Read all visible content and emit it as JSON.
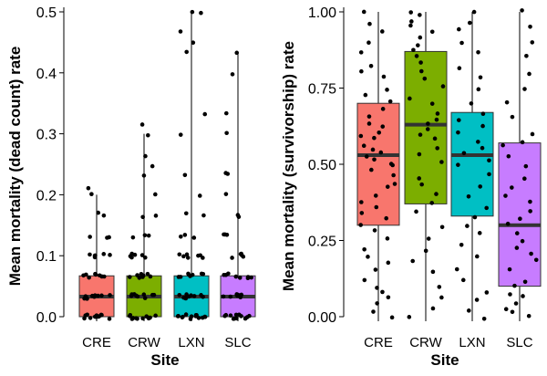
{
  "chart_data": [
    {
      "type": "boxplot",
      "xlabel": "Site",
      "ylabel": "Mean mortality (dead count) rate",
      "categories": [
        "CRE",
        "CRW",
        "LXN",
        "SLC"
      ],
      "colors": [
        "#f8766d",
        "#7cae00",
        "#00bfc4",
        "#c77cff"
      ],
      "ylim": [
        0,
        0.5
      ],
      "yticks": [
        0.0,
        0.1,
        0.2,
        0.3,
        0.4,
        0.5
      ],
      "ytick_labels": [
        "0.0",
        "0.1",
        "0.2",
        "0.3",
        "0.4",
        "0.5"
      ],
      "boxes": [
        {
          "q1": 0.0,
          "median": 0.033,
          "q3": 0.067,
          "whisker_low": 0.0,
          "whisker_high": 0.2
        },
        {
          "q1": 0.0,
          "median": 0.033,
          "q3": 0.067,
          "whisker_low": 0.0,
          "whisker_high": 0.3
        },
        {
          "q1": 0.0,
          "median": 0.033,
          "q3": 0.067,
          "whisker_low": 0.0,
          "whisker_high": 0.5
        },
        {
          "q1": 0.0,
          "median": 0.033,
          "q3": 0.067,
          "whisker_low": 0.0,
          "whisker_high": 0.433
        }
      ],
      "points": [
        [
          0,
          0,
          0,
          0,
          0,
          0,
          0,
          0,
          0,
          0,
          0,
          0,
          0.033,
          0.033,
          0.033,
          0.033,
          0.033,
          0.033,
          0.033,
          0.033,
          0.033,
          0.033,
          0.067,
          0.067,
          0.067,
          0.067,
          0.067,
          0.067,
          0.067,
          0.067,
          0.1,
          0.1,
          0.1,
          0.1,
          0.1,
          0.1,
          0.133,
          0.133,
          0.133,
          0.167,
          0.167,
          0.2,
          0.21
        ],
        [
          0,
          0,
          0,
          0,
          0,
          0,
          0,
          0,
          0,
          0,
          0,
          0,
          0,
          0.033,
          0.033,
          0.033,
          0.033,
          0.033,
          0.033,
          0.033,
          0.033,
          0.033,
          0.033,
          0.067,
          0.067,
          0.067,
          0.067,
          0.067,
          0.067,
          0.067,
          0.067,
          0.1,
          0.1,
          0.1,
          0.1,
          0.1,
          0.1,
          0.133,
          0.133,
          0.133,
          0.167,
          0.167,
          0.2,
          0.233,
          0.25,
          0.267,
          0.3,
          0.312
        ],
        [
          0,
          0,
          0,
          0,
          0,
          0,
          0,
          0,
          0,
          0,
          0,
          0,
          0,
          0,
          0.033,
          0.033,
          0.033,
          0.033,
          0.033,
          0.033,
          0.033,
          0.033,
          0.033,
          0.033,
          0.067,
          0.067,
          0.067,
          0.067,
          0.067,
          0.067,
          0.067,
          0.067,
          0.1,
          0.1,
          0.1,
          0.1,
          0.1,
          0.1,
          0.1,
          0.133,
          0.133,
          0.133,
          0.167,
          0.167,
          0.2,
          0.233,
          0.3,
          0.333,
          0.433,
          0.45,
          0.467,
          0.5,
          0.5
        ],
        [
          0,
          0,
          0,
          0,
          0,
          0,
          0,
          0,
          0,
          0,
          0,
          0,
          0.033,
          0.033,
          0.033,
          0.033,
          0.033,
          0.033,
          0.033,
          0.033,
          0.033,
          0.067,
          0.067,
          0.067,
          0.067,
          0.067,
          0.067,
          0.067,
          0.067,
          0.1,
          0.1,
          0.1,
          0.1,
          0.1,
          0.133,
          0.133,
          0.133,
          0.167,
          0.167,
          0.2,
          0.233,
          0.233,
          0.3,
          0.333,
          0.4,
          0.433
        ]
      ]
    },
    {
      "type": "boxplot",
      "xlabel": "Site",
      "ylabel": "Mean mortality (survivorship) rate",
      "categories": [
        "CRE",
        "CRW",
        "LXN",
        "SLC"
      ],
      "colors": [
        "#f8766d",
        "#7cae00",
        "#00bfc4",
        "#c77cff"
      ],
      "ylim": [
        0,
        1
      ],
      "yticks": [
        0.0,
        0.25,
        0.5,
        0.75,
        1.0
      ],
      "ytick_labels": [
        "0.00",
        "0.25",
        "0.50",
        "0.75",
        "1.00"
      ],
      "boxes": [
        {
          "q1": 0.3,
          "median": 0.53,
          "q3": 0.7,
          "whisker_low": 0.0,
          "whisker_high": 1.0
        },
        {
          "q1": 0.37,
          "median": 0.63,
          "q3": 0.87,
          "whisker_low": 0.0,
          "whisker_high": 1.0
        },
        {
          "q1": 0.33,
          "median": 0.53,
          "q3": 0.67,
          "whisker_low": 0.0,
          "whisker_high": 1.0
        },
        {
          "q1": 0.1,
          "median": 0.3,
          "q3": 0.57,
          "whisker_low": 0.0,
          "whisker_high": 1.0
        }
      ],
      "points": [
        [
          0.0,
          0.02,
          0.04,
          0.06,
          0.08,
          0.1,
          0.12,
          0.15,
          0.18,
          0.2,
          0.22,
          0.25,
          0.28,
          0.3,
          0.32,
          0.34,
          0.36,
          0.38,
          0.4,
          0.42,
          0.44,
          0.46,
          0.48,
          0.5,
          0.5,
          0.52,
          0.53,
          0.54,
          0.55,
          0.56,
          0.58,
          0.6,
          0.6,
          0.62,
          0.64,
          0.66,
          0.68,
          0.7,
          0.72,
          0.75,
          0.78,
          0.8,
          0.83,
          0.86,
          0.9,
          0.93,
          0.96,
          1.0
        ],
        [
          0.0,
          0.03,
          0.06,
          0.1,
          0.14,
          0.18,
          0.22,
          0.26,
          0.3,
          0.34,
          0.37,
          0.4,
          0.43,
          0.46,
          0.5,
          0.53,
          0.56,
          0.58,
          0.6,
          0.62,
          0.63,
          0.65,
          0.67,
          0.7,
          0.72,
          0.75,
          0.78,
          0.8,
          0.83,
          0.85,
          0.87,
          0.89,
          0.91,
          0.93,
          0.95,
          0.97,
          0.99,
          1.0
        ],
        [
          0.0,
          0.02,
          0.05,
          0.08,
          0.12,
          0.15,
          0.2,
          0.24,
          0.28,
          0.3,
          0.33,
          0.36,
          0.4,
          0.43,
          0.46,
          0.5,
          0.52,
          0.53,
          0.55,
          0.58,
          0.6,
          0.62,
          0.65,
          0.67,
          0.7,
          0.74,
          0.78,
          0.82,
          0.86,
          0.9,
          0.94,
          0.97,
          1.0
        ],
        [
          0.0,
          0.01,
          0.02,
          0.04,
          0.06,
          0.08,
          0.1,
          0.12,
          0.15,
          0.18,
          0.2,
          0.22,
          0.25,
          0.28,
          0.3,
          0.32,
          0.35,
          0.38,
          0.4,
          0.43,
          0.46,
          0.5,
          0.53,
          0.56,
          0.57,
          0.6,
          0.65,
          0.7,
          0.75,
          0.8,
          0.85,
          0.9,
          0.95,
          1.0
        ]
      ]
    }
  ]
}
